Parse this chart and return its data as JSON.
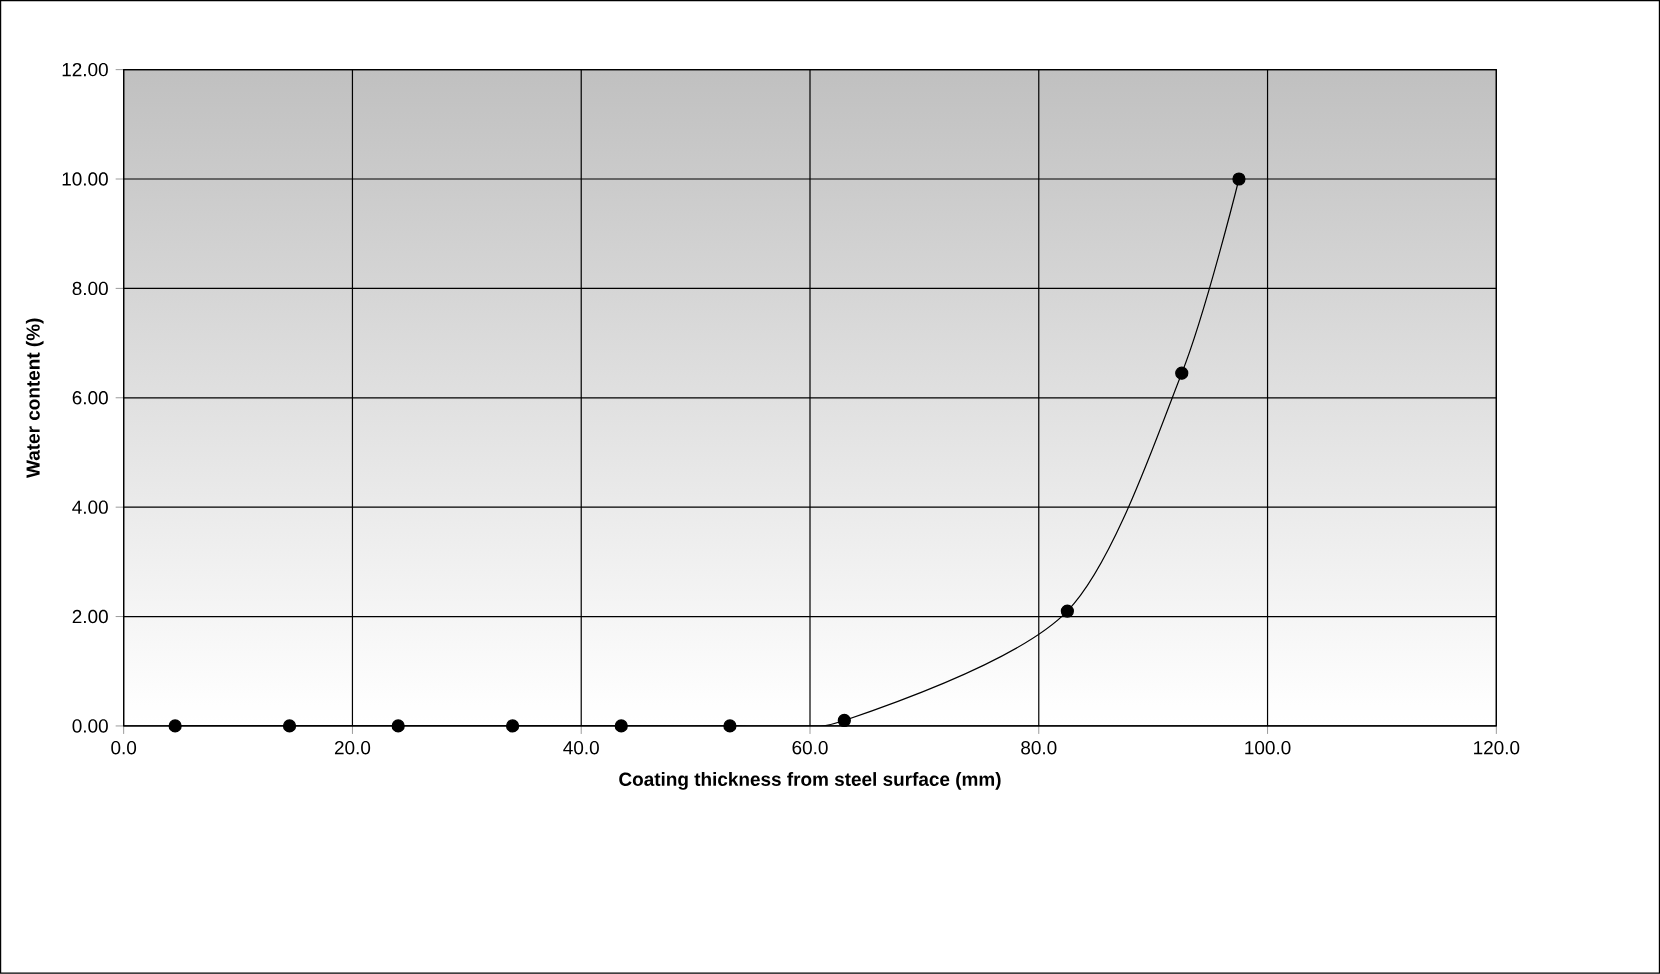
{
  "chart_data": {
    "type": "line",
    "xlabel": "Coating thickness from steel surface  (mm)",
    "ylabel": "Water content  (%)",
    "x": [
      4.5,
      14.5,
      24,
      34,
      43.5,
      53,
      63,
      82.5,
      92.5,
      97.5
    ],
    "series": [
      {
        "color": "#000000",
        "values": [
          0,
          0,
          0,
          0,
          0,
          0,
          0.1,
          2.1,
          6.45,
          10.0
        ]
      }
    ],
    "xlim": [
      0,
      120
    ],
    "ylim": [
      0,
      12
    ],
    "xticks": [
      {
        "value": 0,
        "label": "0.0"
      },
      {
        "value": 20,
        "label": "20.0"
      },
      {
        "value": 40,
        "label": "40.0"
      },
      {
        "value": 60,
        "label": "60.0"
      },
      {
        "value": 80,
        "label": "80.0"
      },
      {
        "value": 100,
        "label": "100.0"
      },
      {
        "value": 120,
        "label": "120.0"
      }
    ],
    "yticks": [
      {
        "value": 0,
        "label": "0.00"
      },
      {
        "value": 2,
        "label": "2.00"
      },
      {
        "value": 4,
        "label": "4.00"
      },
      {
        "value": 6,
        "label": "6.00"
      },
      {
        "value": 8,
        "label": "8.00"
      },
      {
        "value": 10,
        "label": "10.00"
      },
      {
        "value": 12,
        "label": "12.00"
      }
    ],
    "grid": true,
    "marker": "circle",
    "line_style": "solid"
  }
}
